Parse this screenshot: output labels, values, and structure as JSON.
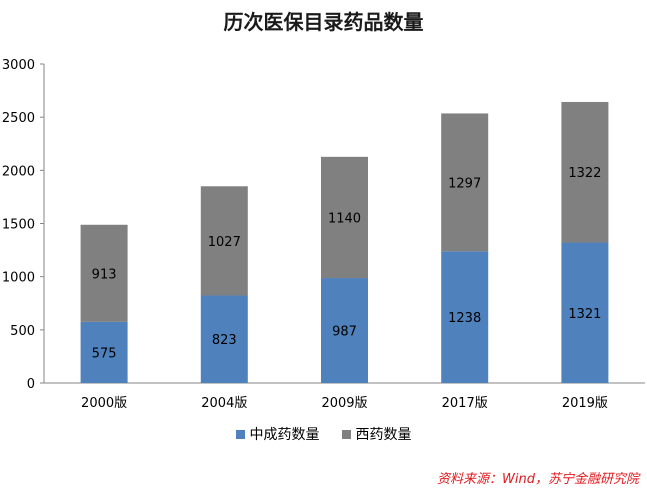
{
  "chart_data": {
    "type": "bar",
    "stacked": true,
    "title": "历次医保目录药品数量",
    "categories": [
      "2000版",
      "2004版",
      "2009版",
      "2017版",
      "2019版"
    ],
    "series": [
      {
        "name": "中成药数量",
        "color": "#4f81bd",
        "values": [
          575,
          823,
          987,
          1238,
          1321
        ]
      },
      {
        "name": "西药数量",
        "color": "#808080",
        "values": [
          913,
          1027,
          1140,
          1297,
          1322
        ]
      }
    ],
    "ylim": [
      0,
      3000
    ],
    "yticks": [
      "0",
      "500",
      "1000",
      "1500",
      "2000",
      "2500",
      "3000"
    ],
    "grid": false,
    "legend_position": "bottom"
  },
  "source_note": "资料来源：Wind，苏宁金融研究院"
}
